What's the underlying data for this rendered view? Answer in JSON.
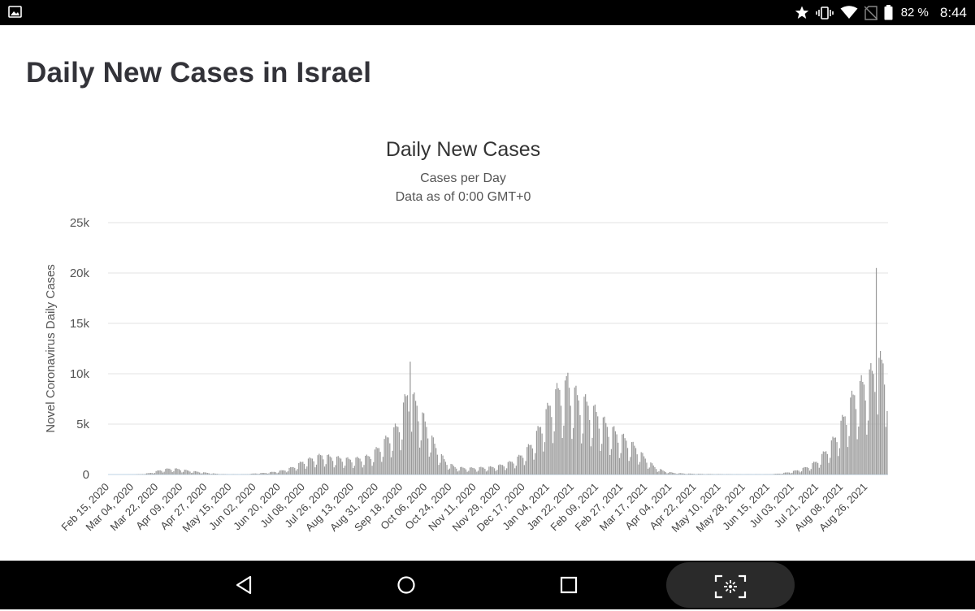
{
  "status_bar": {
    "left_icon": "image-icon",
    "icons": [
      "star-icon",
      "vibrate-icon",
      "wifi-icon",
      "no-sim-icon",
      "battery-icon"
    ],
    "battery": "82 %",
    "time": "8:44"
  },
  "page": {
    "title": "Daily New Cases in Israel"
  },
  "nav_bar": {
    "icons": [
      "back-icon",
      "home-icon",
      "recents-icon",
      "screenshot-icon"
    ]
  },
  "chart_data": {
    "type": "bar",
    "title": "Daily New Cases",
    "subtitle": "Cases per Day",
    "subtitle2": "Data as of 0:00 GMT+0",
    "ylabel": "Novel Coronavirus Daily Cases",
    "xlabel": "",
    "ylim": [
      0,
      25000
    ],
    "yticks": [
      0,
      5000,
      10000,
      15000,
      20000,
      25000
    ],
    "ytick_labels": [
      "0",
      "5k",
      "10k",
      "15k",
      "20k",
      "25k"
    ],
    "grid": true,
    "bar_color": "#999999",
    "x_tick_labels": [
      "Feb 15, 2020",
      "Mar 04, 2020",
      "Mar 22, 2020",
      "Apr 09, 2020",
      "Apr 27, 2020",
      "May 15, 2020",
      "Jun 02, 2020",
      "Jun 20, 2020",
      "Jul 08, 2020",
      "Jul 26, 2020",
      "Aug 13, 2020",
      "Aug 31, 2020",
      "Sep 18, 2020",
      "Oct 06, 2020",
      "Oct 24, 2020",
      "Nov 11, 2020",
      "Nov 29, 2020",
      "Dec 17, 2020",
      "Jan 04, 2021",
      "Jan 22, 2021",
      "Feb 09, 2021",
      "Feb 27, 2021",
      "Mar 17, 2021",
      "Apr 04, 2021",
      "Apr 22, 2021",
      "May 10, 2021",
      "May 28, 2021",
      "Jun 15, 2021",
      "Jul 03, 2021",
      "Jul 21, 2021",
      "Aug 08, 2021",
      "Aug 26, 2021"
    ],
    "approx_weekly_values": [
      {
        "week_start": "Feb 15, 2020",
        "value": 0
      },
      {
        "week_start": "Feb 22, 2020",
        "value": 0
      },
      {
        "week_start": "Feb 29, 2020",
        "value": 5
      },
      {
        "week_start": "Mar 07, 2020",
        "value": 30
      },
      {
        "week_start": "Mar 14, 2020",
        "value": 150
      },
      {
        "week_start": "Mar 21, 2020",
        "value": 400
      },
      {
        "week_start": "Mar 28, 2020",
        "value": 550
      },
      {
        "week_start": "Apr 04, 2020",
        "value": 500
      },
      {
        "week_start": "Apr 11, 2020",
        "value": 350
      },
      {
        "week_start": "Apr 18, 2020",
        "value": 250
      },
      {
        "week_start": "Apr 25, 2020",
        "value": 150
      },
      {
        "week_start": "May 02, 2020",
        "value": 60
      },
      {
        "week_start": "May 09, 2020",
        "value": 20
      },
      {
        "week_start": "May 16, 2020",
        "value": 15
      },
      {
        "week_start": "May 23, 2020",
        "value": 20
      },
      {
        "week_start": "May 30, 2020",
        "value": 100
      },
      {
        "week_start": "Jun 06, 2020",
        "value": 150
      },
      {
        "week_start": "Jun 13, 2020",
        "value": 250
      },
      {
        "week_start": "Jun 20, 2020",
        "value": 400
      },
      {
        "week_start": "Jun 27, 2020",
        "value": 700
      },
      {
        "week_start": "Jul 04, 2020",
        "value": 1200
      },
      {
        "week_start": "Jul 11, 2020",
        "value": 1500
      },
      {
        "week_start": "Jul 18, 2020",
        "value": 1800
      },
      {
        "week_start": "Jul 25, 2020",
        "value": 1600
      },
      {
        "week_start": "Aug 01, 2020",
        "value": 1500
      },
      {
        "week_start": "Aug 08, 2020",
        "value": 1400
      },
      {
        "week_start": "Aug 15, 2020",
        "value": 1500
      },
      {
        "week_start": "Aug 22, 2020",
        "value": 1700
      },
      {
        "week_start": "Aug 29, 2020",
        "value": 2500
      },
      {
        "week_start": "Sep 05, 2020",
        "value": 3500
      },
      {
        "week_start": "Sep 12, 2020",
        "value": 4500
      },
      {
        "week_start": "Sep 19, 2020",
        "value": 7500
      },
      {
        "week_start": "Sep 26, 2020",
        "value": 6500
      },
      {
        "week_start": "Oct 03, 2020",
        "value": 4500
      },
      {
        "week_start": "Oct 10, 2020",
        "value": 2500
      },
      {
        "week_start": "Oct 17, 2020",
        "value": 1200
      },
      {
        "week_start": "Oct 24, 2020",
        "value": 700
      },
      {
        "week_start": "Oct 31, 2020",
        "value": 600
      },
      {
        "week_start": "Nov 07, 2020",
        "value": 600
      },
      {
        "week_start": "Nov 14, 2020",
        "value": 650
      },
      {
        "week_start": "Nov 21, 2020",
        "value": 700
      },
      {
        "week_start": "Nov 28, 2020",
        "value": 900
      },
      {
        "week_start": "Dec 05, 2020",
        "value": 1200
      },
      {
        "week_start": "Dec 12, 2020",
        "value": 1800
      },
      {
        "week_start": "Dec 19, 2020",
        "value": 2800
      },
      {
        "week_start": "Dec 26, 2020",
        "value": 4500
      },
      {
        "week_start": "Jan 02, 2021",
        "value": 6500
      },
      {
        "week_start": "Jan 09, 2021",
        "value": 8000
      },
      {
        "week_start": "Jan 16, 2021",
        "value": 8200
      },
      {
        "week_start": "Jan 23, 2021",
        "value": 7000
      },
      {
        "week_start": "Jan 30, 2021",
        "value": 6500
      },
      {
        "week_start": "Feb 06, 2021",
        "value": 5500
      },
      {
        "week_start": "Feb 13, 2021",
        "value": 4500
      },
      {
        "week_start": "Feb 20, 2021",
        "value": 3800
      },
      {
        "week_start": "Feb 27, 2021",
        "value": 3200
      },
      {
        "week_start": "Mar 06, 2021",
        "value": 2500
      },
      {
        "week_start": "Mar 13, 2021",
        "value": 1500
      },
      {
        "week_start": "Mar 20, 2021",
        "value": 700
      },
      {
        "week_start": "Mar 27, 2021",
        "value": 300
      },
      {
        "week_start": "Apr 03, 2021",
        "value": 150
      },
      {
        "week_start": "Apr 10, 2021",
        "value": 100
      },
      {
        "week_start": "Apr 17, 2021",
        "value": 70
      },
      {
        "week_start": "Apr 24, 2021",
        "value": 50
      },
      {
        "week_start": "May 01, 2021",
        "value": 40
      },
      {
        "week_start": "May 08, 2021",
        "value": 30
      },
      {
        "week_start": "May 15, 2021",
        "value": 20
      },
      {
        "week_start": "May 22, 2021",
        "value": 15
      },
      {
        "week_start": "May 29, 2021",
        "value": 15
      },
      {
        "week_start": "Jun 05, 2021",
        "value": 15
      },
      {
        "week_start": "Jun 12, 2021",
        "value": 15
      },
      {
        "week_start": "Jun 19, 2021",
        "value": 80
      },
      {
        "week_start": "Jun 26, 2021",
        "value": 200
      },
      {
        "week_start": "Jul 03, 2021",
        "value": 400
      },
      {
        "week_start": "Jul 10, 2021",
        "value": 700
      },
      {
        "week_start": "Jul 17, 2021",
        "value": 1200
      },
      {
        "week_start": "Jul 24, 2021",
        "value": 2200
      },
      {
        "week_start": "Jul 31, 2021",
        "value": 3500
      },
      {
        "week_start": "Aug 07, 2021",
        "value": 5500
      },
      {
        "week_start": "Aug 14, 2021",
        "value": 7500
      },
      {
        "week_start": "Aug 21, 2021",
        "value": 8500
      },
      {
        "week_start": "Aug 28, 2021",
        "value": 9500
      },
      {
        "week_start": "Sep 04, 2021",
        "value": 10500
      }
    ],
    "peaks": [
      {
        "date": "Sep 24, 2020",
        "value": 11200
      },
      {
        "date": "Jan 18, 2021",
        "value": 10100
      },
      {
        "date": "Sep 02, 2021",
        "value": 20500
      }
    ]
  }
}
